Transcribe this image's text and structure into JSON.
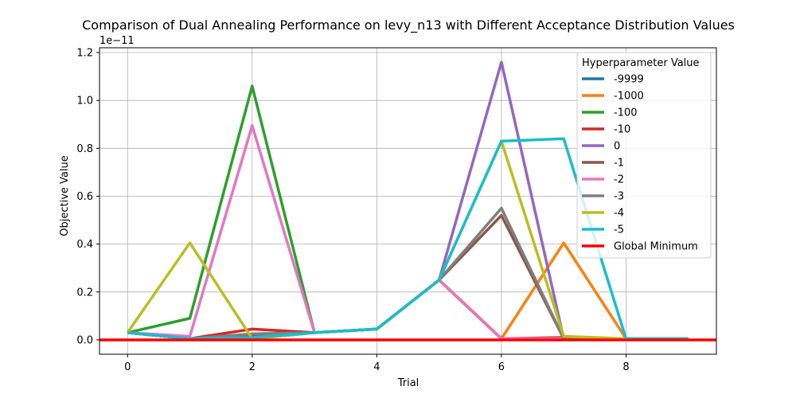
{
  "chart_data": {
    "type": "line",
    "title": "Comparison of Dual Annealing Performance on levy_n13 with Different Acceptance Distribution Values",
    "xlabel": "Trial",
    "ylabel": "Objective Value",
    "y_offset_label": "1e−11",
    "xlim": [
      -0.45,
      9.45
    ],
    "ylim": [
      -0.06,
      1.22
    ],
    "xticks": [
      0,
      2,
      4,
      6,
      8
    ],
    "yticks": [
      0.0,
      0.2,
      0.4,
      0.6,
      0.8,
      1.0,
      1.2
    ],
    "grid": true,
    "legend": {
      "title": "Hyperparameter Value",
      "placement": "top-right"
    },
    "x": [
      0,
      1,
      2,
      3,
      4,
      5,
      6,
      7,
      8,
      9
    ],
    "series": [
      {
        "name": "-9999",
        "color": "#1f77b4",
        "values": [
          0.03,
          0.005,
          0.005,
          0.03,
          0.045,
          0.25,
          0.005,
          0.005,
          0.005,
          0.005
        ]
      },
      {
        "name": "-1000",
        "color": "#ff7f0e",
        "values": [
          0.03,
          0.005,
          0.01,
          0.03,
          0.045,
          0.25,
          0.005,
          0.405,
          0.005,
          0.005
        ]
      },
      {
        "name": "-100",
        "color": "#2ca02c",
        "values": [
          0.03,
          0.09,
          1.06,
          0.03,
          0.045,
          0.25,
          0.005,
          0.005,
          0.005,
          0.005
        ]
      },
      {
        "name": "-10",
        "color": "#d62728",
        "values": [
          0.03,
          0.005,
          0.045,
          0.03,
          0.045,
          0.25,
          0.005,
          0.01,
          0.005,
          0.005
        ]
      },
      {
        "name": "0",
        "color": "#9467bd",
        "values": [
          0.03,
          0.005,
          0.02,
          0.03,
          0.045,
          0.25,
          1.16,
          0.005,
          0.005,
          0.005
        ]
      },
      {
        "name": "-1",
        "color": "#8c564b",
        "values": [
          0.03,
          0.005,
          0.015,
          0.03,
          0.045,
          0.25,
          0.52,
          0.005,
          0.005,
          0.005
        ]
      },
      {
        "name": "-2",
        "color": "#e377c2",
        "values": [
          0.03,
          0.015,
          0.895,
          0.03,
          0.045,
          0.25,
          0.005,
          0.005,
          0.005,
          0.005
        ]
      },
      {
        "name": "-3",
        "color": "#7f7f7f",
        "values": [
          0.03,
          0.005,
          0.025,
          0.03,
          0.045,
          0.25,
          0.55,
          0.005,
          0.005,
          0.005
        ]
      },
      {
        "name": "-4",
        "color": "#bcbd22",
        "values": [
          0.03,
          0.405,
          0.005,
          0.03,
          0.045,
          0.25,
          0.83,
          0.015,
          0.005,
          0.005
        ]
      },
      {
        "name": "-5",
        "color": "#17becf",
        "values": [
          0.03,
          0.005,
          0.01,
          0.03,
          0.045,
          0.25,
          0.83,
          0.84,
          0.005,
          0.005
        ]
      }
    ],
    "global_minimum": {
      "name": "Global Minimum",
      "color": "#ff0000",
      "value": 0.0
    }
  }
}
